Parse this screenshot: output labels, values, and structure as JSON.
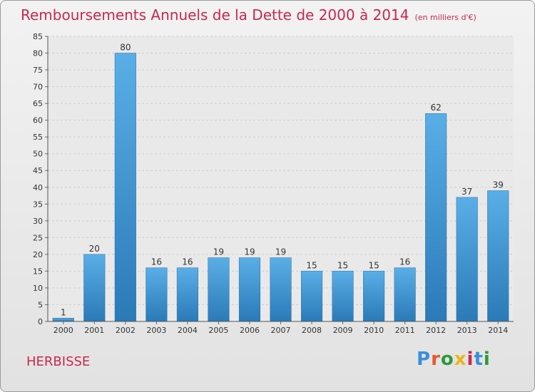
{
  "title": "Remboursements Annuels de la Dette de 2000 à 2014",
  "unit": "(en milliers d'€)",
  "commune": "HERBISSE",
  "logo": {
    "letters": [
      "P",
      "r",
      "o",
      "x",
      "i",
      "t",
      "i"
    ],
    "colors": [
      "#3a8fd6",
      "#e8582a",
      "#2c9a3c",
      "#e8b81a",
      "#c8284e",
      "#3a8fd6",
      "#2c9a3c"
    ]
  },
  "chart_data": {
    "type": "bar",
    "categories": [
      "2000",
      "2001",
      "2002",
      "2003",
      "2004",
      "2005",
      "2006",
      "2007",
      "2008",
      "2009",
      "2010",
      "2011",
      "2012",
      "2013",
      "2014"
    ],
    "values": [
      1,
      20,
      80,
      16,
      16,
      19,
      19,
      19,
      15,
      15,
      15,
      16,
      62,
      37,
      39
    ],
    "ylim": [
      0,
      85
    ],
    "yticks": [
      0,
      5,
      10,
      15,
      20,
      25,
      30,
      35,
      40,
      45,
      50,
      55,
      60,
      65,
      70,
      75,
      80,
      85
    ],
    "grid": true,
    "bar_color_top": "#5aaee6",
    "bar_color_bottom": "#2a7ab8"
  }
}
